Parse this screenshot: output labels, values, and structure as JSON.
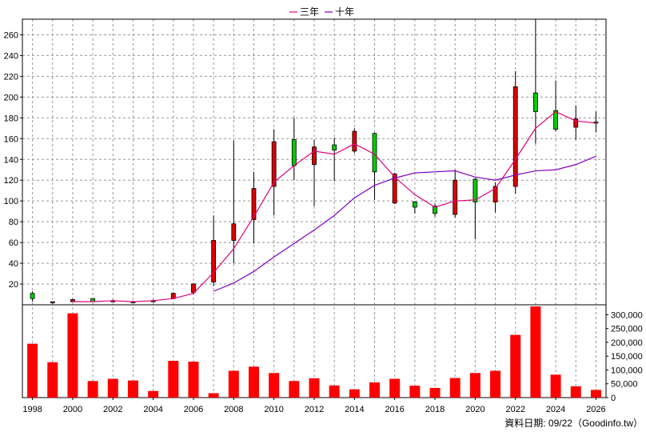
{
  "legend": [
    {
      "label": "三年",
      "color": "#e0007a"
    },
    {
      "label": "十年",
      "color": "#8000c0"
    }
  ],
  "footer": "資料日期: 09/22（Goodinfo.tw）",
  "colors": {
    "up_candle": "#00cc00",
    "down_candle": "#dd0000",
    "volume_bar": "#ff0000",
    "grid": "#999999",
    "wick": "#000000"
  },
  "chart_data": [
    {
      "type": "candlestick",
      "title": "",
      "x_ticks": [
        "1998",
        "2000",
        "2002",
        "2004",
        "2006",
        "2008",
        "2010",
        "2012",
        "2014",
        "2016",
        "2018",
        "2020",
        "2022",
        "2024",
        "2026"
      ],
      "y_ticks": [
        "20",
        "40",
        "60",
        "80",
        "100",
        "120",
        "140",
        "160",
        "180",
        "200",
        "220",
        "240",
        "260"
      ],
      "ylim": [
        0,
        275
      ],
      "xlim": [
        1997.5,
        2026.5
      ],
      "grid": true,
      "years": [
        1998,
        1999,
        2000,
        2001,
        2002,
        2003,
        2004,
        2005,
        2006,
        2007,
        2008,
        2009,
        2010,
        2011,
        2012,
        2013,
        2014,
        2015,
        2016,
        2017,
        2018,
        2019,
        2020,
        2021,
        2022,
        2023,
        2024,
        2025,
        2026
      ],
      "candles": [
        {
          "open": 6,
          "close": 11,
          "high": 13,
          "low": 3
        },
        {
          "open": 3,
          "close": 2,
          "high": 3,
          "low": 1
        },
        {
          "open": 5,
          "close": 3,
          "high": 6,
          "low": 3
        },
        {
          "open": 3,
          "close": 6,
          "high": 6,
          "low": 3
        },
        {
          "open": 4,
          "close": 3,
          "high": 5,
          "low": 3
        },
        {
          "open": 3,
          "close": 3,
          "high": 4,
          "low": 3
        },
        {
          "open": 4,
          "close": 3,
          "high": 5,
          "low": 3
        },
        {
          "open": 11,
          "close": 6,
          "high": 12,
          "low": 6
        },
        {
          "open": 20,
          "close": 12,
          "high": 21,
          "low": 10
        },
        {
          "open": 62,
          "close": 22,
          "high": 86,
          "low": 18
        },
        {
          "open": 78,
          "close": 62,
          "high": 158,
          "low": 40
        },
        {
          "open": 112,
          "close": 82,
          "high": 128,
          "low": 59
        },
        {
          "open": 157,
          "close": 114,
          "high": 169,
          "low": 86
        },
        {
          "open": 134,
          "close": 159,
          "high": 180,
          "low": 120
        },
        {
          "open": 152,
          "close": 135,
          "high": 159,
          "low": 95
        },
        {
          "open": 149,
          "close": 154,
          "high": 161,
          "low": 119
        },
        {
          "open": 167,
          "close": 148,
          "high": 170,
          "low": 146
        },
        {
          "open": 128,
          "close": 165,
          "high": 166,
          "low": 101
        },
        {
          "open": 126,
          "close": 98,
          "high": 127,
          "low": 97
        },
        {
          "open": 94,
          "close": 99,
          "high": 100,
          "low": 88
        },
        {
          "open": 88,
          "close": 95,
          "high": 97,
          "low": 85
        },
        {
          "open": 120,
          "close": 87,
          "high": 130,
          "low": 84
        },
        {
          "open": 99,
          "close": 121,
          "high": 122,
          "low": 63
        },
        {
          "open": 114,
          "close": 99,
          "high": 118,
          "low": 89
        },
        {
          "open": 210,
          "close": 114,
          "high": 225,
          "low": 107
        },
        {
          "open": 186,
          "close": 204,
          "high": 275,
          "low": 155
        },
        {
          "open": 169,
          "close": 187,
          "high": 216,
          "low": 167
        },
        {
          "open": 179,
          "close": 171,
          "high": 192,
          "low": 159
        },
        {
          "open": 175,
          "close": 176,
          "high": 186,
          "low": 166
        }
      ],
      "series": [
        {
          "name": "三年",
          "color": "#e0007a",
          "x": [
            2000,
            2001,
            2002,
            2003,
            2004,
            2005,
            2006,
            2007,
            2008,
            2009,
            2010,
            2011,
            2012,
            2013,
            2014,
            2015,
            2016,
            2017,
            2018,
            2019,
            2020,
            2021,
            2022,
            2023,
            2024,
            2025,
            2026
          ],
          "values": [
            3,
            3,
            4,
            3,
            4,
            6,
            11,
            31,
            54,
            85,
            118,
            134,
            148,
            145,
            155,
            145,
            123,
            106,
            94,
            100,
            101,
            112,
            140,
            170,
            186,
            177,
            175
          ]
        },
        {
          "name": "十年",
          "color": "#8000c0",
          "x": [
            2007,
            2008,
            2009,
            2010,
            2011,
            2012,
            2013,
            2014,
            2015,
            2016,
            2017,
            2018,
            2019,
            2020,
            2021,
            2022,
            2023,
            2024,
            2025,
            2026
          ],
          "values": [
            13,
            21,
            32,
            46,
            59,
            72,
            86,
            103,
            115,
            122,
            127,
            128,
            129,
            123,
            120,
            125,
            129,
            130,
            135,
            143
          ]
        }
      ]
    },
    {
      "type": "bar",
      "title": "",
      "y_ticks": [
        "0",
        "50,000",
        "100,000",
        "150,000",
        "200,000",
        "250,000",
        "300,000"
      ],
      "ylim": [
        0,
        330000
      ],
      "categories": [
        1998,
        1999,
        2000,
        2001,
        2002,
        2003,
        2004,
        2005,
        2006,
        2007,
        2008,
        2009,
        2010,
        2011,
        2012,
        2013,
        2014,
        2015,
        2016,
        2017,
        2018,
        2019,
        2020,
        2021,
        2022,
        2023,
        2024,
        2025,
        2026
      ],
      "values": [
        195000,
        128000,
        305000,
        60000,
        68000,
        62000,
        24000,
        133000,
        130000,
        16000,
        97000,
        112000,
        89000,
        60000,
        70000,
        44000,
        30000,
        55000,
        68000,
        43000,
        35000,
        71000,
        89000,
        97000,
        227000,
        330000,
        83000,
        41000,
        28000
      ]
    }
  ]
}
